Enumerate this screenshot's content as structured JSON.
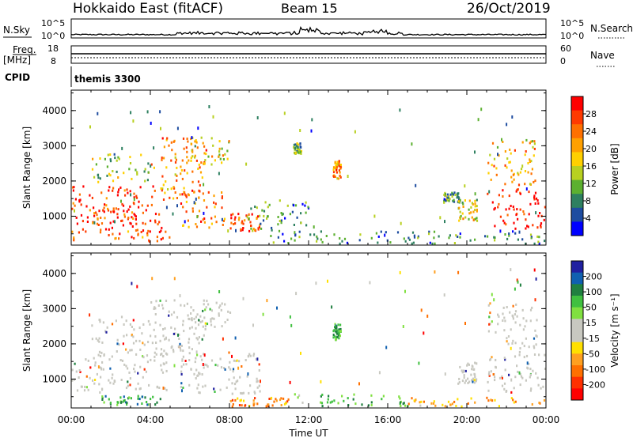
{
  "header": {
    "station": "Hokkaido East (fitACF)",
    "beam": "Beam 15",
    "date": "26/Oct/2019"
  },
  "panels": {
    "nsky_label": "N.Sky",
    "nsearch_label": "N.Search",
    "freq_label": "Freq.",
    "freq_unit": "[MHz]",
    "nave_label": "Nave",
    "cpid_label": "CPID",
    "cpid_value": "themis 3300",
    "nsky_ticks": [
      "10^5",
      "10^0"
    ],
    "nsearch_ticks": [
      "10^5",
      "10^0"
    ],
    "freq_ticks": [
      "18",
      "8"
    ],
    "nave_ticks": [
      "60",
      "0"
    ]
  },
  "colorbars": {
    "power": {
      "label": "Power [dB]",
      "ticks": [
        "28",
        "24",
        "20",
        "16",
        "12",
        "8",
        "4"
      ],
      "colors": [
        "#ff0000",
        "#ff3a00",
        "#ff7000",
        "#ffa000",
        "#ffd000",
        "#b8d020",
        "#5cb030",
        "#2e8060",
        "#1e4ca0",
        "#0000ff"
      ]
    },
    "velocity": {
      "label": "Velocity [m s⁻¹]",
      "ticks": [
        "200",
        "100",
        "50",
        "15",
        "-15",
        "-50",
        "-100",
        "-200"
      ],
      "colors": [
        "#2020a0",
        "#1060b0",
        "#208040",
        "#40c040",
        "#80e040",
        "#c8c8c0",
        "#c8c8c0",
        "#ffe000",
        "#ffa020",
        "#ff7000",
        "#ff3000",
        "#ff0000"
      ]
    }
  },
  "chart_data": [
    {
      "type": "heatmap",
      "title": "Power",
      "xlabel": "",
      "ylabel": "Slant Range [km]",
      "x_ticks": [
        "00:00",
        "04:00",
        "08:00",
        "12:00",
        "16:00",
        "20:00",
        "00:00"
      ],
      "y_ticks": [
        1000,
        2000,
        3000,
        4000
      ],
      "ylim": [
        180,
        4580
      ],
      "xlim_hours": [
        0,
        24
      ],
      "regions": [
        {
          "t0": 0.0,
          "t1": 3.5,
          "r0": 650,
          "r1": 1900,
          "level": 0.9
        },
        {
          "t0": 1.0,
          "t1": 4.8,
          "r0": 800,
          "r1": 1400,
          "level": 0.85
        },
        {
          "t0": 4.0,
          "t1": 6.8,
          "r0": 1500,
          "r1": 3300,
          "level": 0.7
        },
        {
          "t0": 5.5,
          "t1": 7.8,
          "r0": 700,
          "r1": 1800,
          "level": 0.75
        },
        {
          "t0": 8.0,
          "t1": 9.5,
          "r0": 600,
          "r1": 1100,
          "level": 0.85
        },
        {
          "t0": 0.0,
          "t1": 5.0,
          "r0": 300,
          "r1": 700,
          "level": 0.8
        },
        {
          "t0": 1.0,
          "t1": 4.0,
          "r0": 2000,
          "r1": 2800,
          "level": 0.4
        },
        {
          "t0": 6.0,
          "t1": 8.0,
          "r0": 2500,
          "r1": 3300,
          "level": 0.5
        },
        {
          "t0": 9.0,
          "t1": 12.0,
          "r0": 600,
          "r1": 1500,
          "level": 0.3
        },
        {
          "t0": 11.2,
          "t1": 11.6,
          "r0": 2800,
          "r1": 3100,
          "level": 0.35
        },
        {
          "t0": 13.2,
          "t1": 13.6,
          "r0": 2100,
          "r1": 2600,
          "level": 0.7
        },
        {
          "t0": 18.8,
          "t1": 19.6,
          "r0": 1400,
          "r1": 1700,
          "level": 0.3
        },
        {
          "t0": 19.5,
          "t1": 20.5,
          "r0": 900,
          "r1": 1500,
          "level": 0.5
        },
        {
          "t0": 21.0,
          "t1": 24.0,
          "r0": 650,
          "r1": 1800,
          "level": 0.92
        },
        {
          "t0": 21.0,
          "t1": 23.5,
          "r0": 1900,
          "r1": 3200,
          "level": 0.6
        },
        {
          "t0": 10.0,
          "t1": 24.0,
          "r0": 250,
          "r1": 600,
          "level": 0.25
        }
      ]
    },
    {
      "type": "heatmap",
      "title": "Velocity",
      "xlabel": "Time UT",
      "ylabel": "Slant Range [km]",
      "x_ticks": [
        "00:00",
        "04:00",
        "08:00",
        "12:00",
        "16:00",
        "20:00",
        "00:00"
      ],
      "y_ticks": [
        1000,
        2000,
        3000,
        4000
      ],
      "ylim": [
        180,
        4580
      ],
      "xlim_hours": [
        0,
        24
      ],
      "regions": [
        {
          "t0": 0.0,
          "t1": 4.8,
          "r0": 650,
          "r1": 1900,
          "level": 0.5
        },
        {
          "t0": 4.0,
          "t1": 6.8,
          "r0": 1500,
          "r1": 3300,
          "level": 0.5
        },
        {
          "t0": 5.5,
          "t1": 9.5,
          "r0": 600,
          "r1": 1800,
          "level": 0.5
        },
        {
          "t0": 1.0,
          "t1": 4.0,
          "r0": 2000,
          "r1": 2800,
          "level": 0.5
        },
        {
          "t0": 6.0,
          "t1": 8.0,
          "r0": 2500,
          "r1": 3300,
          "level": 0.5
        },
        {
          "t0": 13.2,
          "t1": 13.6,
          "r0": 2100,
          "r1": 2600,
          "level": 0.72
        },
        {
          "t0": 19.5,
          "t1": 20.5,
          "r0": 900,
          "r1": 1500,
          "level": 0.5
        },
        {
          "t0": 21.0,
          "t1": 24.0,
          "r0": 650,
          "r1": 1800,
          "level": 0.5
        },
        {
          "t0": 21.0,
          "t1": 23.5,
          "r0": 1900,
          "r1": 3200,
          "level": 0.5
        },
        {
          "t0": 1.5,
          "t1": 4.5,
          "r0": 300,
          "r1": 550,
          "level": 0.75
        },
        {
          "t0": 8.0,
          "t1": 11.0,
          "r0": 250,
          "r1": 500,
          "level": 0.25
        },
        {
          "t0": 11.0,
          "t1": 17.0,
          "r0": 250,
          "r1": 600,
          "level": 0.7
        },
        {
          "t0": 17.0,
          "t1": 24.0,
          "r0": 250,
          "r1": 500,
          "level": 0.3
        }
      ]
    }
  ]
}
